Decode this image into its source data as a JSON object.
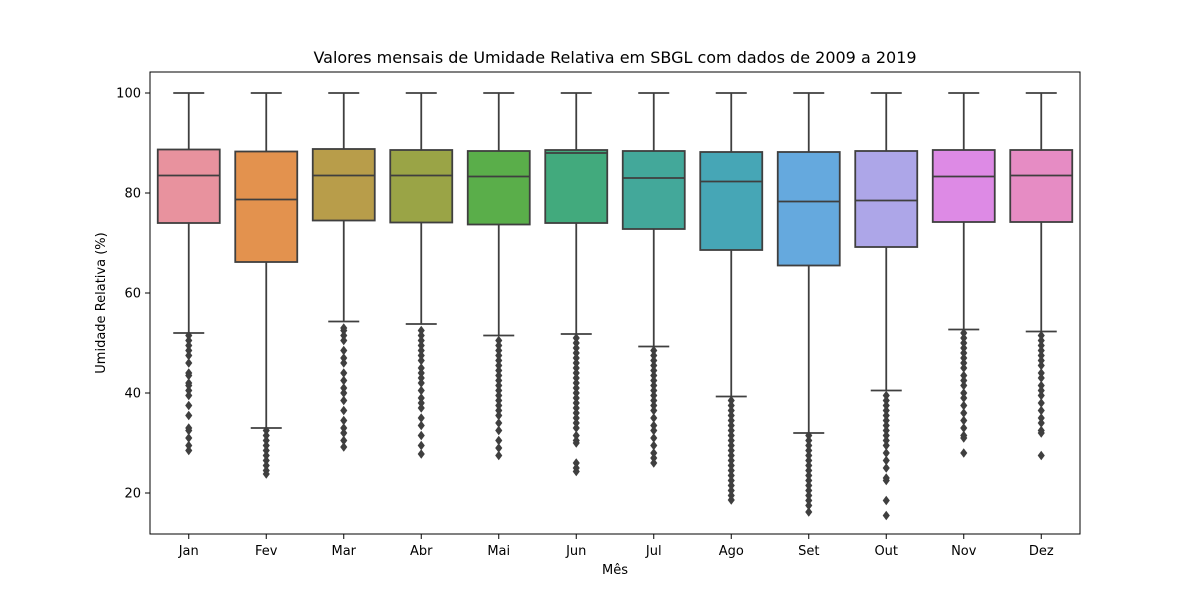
{
  "chart_data": {
    "type": "box",
    "title": "Valores mensais de Umidade Relativa em SBGL com dados de 2009 a 2019",
    "xlabel": "Mês",
    "ylabel": "Umidade Relativa (%)",
    "ylim": [
      11.8,
      104.2
    ],
    "yticks": [
      20,
      40,
      60,
      80,
      100
    ],
    "grid": false,
    "legend": "none",
    "categories": [
      "Jan",
      "Fev",
      "Mar",
      "Abr",
      "Mai",
      "Jun",
      "Jul",
      "Ago",
      "Set",
      "Out",
      "Nov",
      "Dez"
    ],
    "series": [
      {
        "color": "#e8929e",
        "whislo": 52,
        "q1": 74,
        "med": 83.5,
        "q3": 88.7,
        "whishi": 100,
        "fliers": [
          51.5,
          50.5,
          49.5,
          48.5,
          47.5,
          46,
          44,
          43.5,
          42,
          41.5,
          40.5,
          39.5,
          37.5,
          35.5,
          33,
          32.5,
          31,
          29.5,
          28.5
        ]
      },
      {
        "color": "#e3924e",
        "whislo": 33,
        "q1": 66.2,
        "med": 78.7,
        "q3": 88.3,
        "whishi": 100,
        "fliers": [
          32.5,
          31.5,
          30.5,
          29.5,
          28.5,
          27.5,
          26.5,
          25.5,
          24.5,
          23.8
        ]
      },
      {
        "color": "#b89d4a",
        "whislo": 54.3,
        "q1": 74.5,
        "med": 83.5,
        "q3": 88.8,
        "whishi": 100,
        "fliers": [
          53,
          52.5,
          51.5,
          50.5,
          48.5,
          47,
          46,
          44,
          42.5,
          41,
          40,
          38.5,
          36.5,
          34.5,
          33,
          32,
          30.5,
          29.2
        ]
      },
      {
        "color": "#9aa446",
        "whislo": 53.8,
        "q1": 74.1,
        "med": 83.5,
        "q3": 88.6,
        "whishi": 100,
        "fliers": [
          52.5,
          51.5,
          50.5,
          49.5,
          48.5,
          47.5,
          46.5,
          45,
          44,
          43,
          42,
          40.5,
          39,
          38,
          37,
          35,
          33.5,
          31.5,
          29.5,
          27.8
        ]
      },
      {
        "color": "#5aae4a",
        "whislo": 51.5,
        "q1": 73.7,
        "med": 83.3,
        "q3": 88.4,
        "whishi": 100,
        "fliers": [
          50.5,
          49.5,
          48.5,
          47.5,
          46.5,
          45.5,
          44.5,
          43.5,
          42.5,
          41.5,
          40.5,
          39.5,
          38.5,
          37.5,
          36.5,
          35.5,
          34,
          32.5,
          30.5,
          29,
          27.5
        ]
      },
      {
        "color": "#42aa7d",
        "whislo": 51.8,
        "q1": 74,
        "med": 88,
        "q3": 88.6,
        "whishi": 100,
        "fliers": [
          51,
          50,
          49,
          48,
          47,
          46,
          45,
          44,
          43,
          42,
          41,
          40,
          39,
          38,
          37,
          36,
          35,
          34,
          33,
          31.5,
          30.5,
          30,
          26,
          25,
          24.3
        ]
      },
      {
        "color": "#43a89a",
        "whislo": 49.3,
        "q1": 72.8,
        "med": 83,
        "q3": 88.4,
        "whishi": 100,
        "fliers": [
          48.5,
          47.5,
          46.5,
          45.5,
          44.5,
          43.5,
          42.5,
          41.5,
          40.5,
          39.5,
          38.5,
          37.5,
          36.5,
          35,
          33.5,
          32.5,
          31,
          29.5,
          28,
          27,
          26
        ]
      },
      {
        "color": "#46a6b6",
        "whislo": 39.3,
        "q1": 68.6,
        "med": 82.3,
        "q3": 88.2,
        "whishi": 100,
        "fliers": [
          38.5,
          37.5,
          36.5,
          35.5,
          34.5,
          33.5,
          32.5,
          31.5,
          30.5,
          29.5,
          28.5,
          27.5,
          26.5,
          25.5,
          24.5,
          23.5,
          22.5,
          21.5,
          20.5,
          19.5,
          18.6
        ]
      },
      {
        "color": "#65a9de",
        "whislo": 32,
        "q1": 65.5,
        "med": 78.3,
        "q3": 88.2,
        "whishi": 100,
        "fliers": [
          31.5,
          30.5,
          29.5,
          28.5,
          27.5,
          26.5,
          25.5,
          24.5,
          23.5,
          22.5,
          21.5,
          20.5,
          19.5,
          18.5,
          17.5,
          16.2
        ]
      },
      {
        "color": "#ada6e8",
        "whislo": 40.5,
        "q1": 69.2,
        "med": 78.5,
        "q3": 88.4,
        "whishi": 100,
        "fliers": [
          39.5,
          38.5,
          37.5,
          36.5,
          35.5,
          34.5,
          33.5,
          32.5,
          31.5,
          30.5,
          29.5,
          28,
          26.5,
          25,
          23,
          22.5,
          18.5,
          15.5
        ]
      },
      {
        "color": "#dd8ae5",
        "whislo": 52.7,
        "q1": 74.2,
        "med": 83.3,
        "q3": 88.6,
        "whishi": 100,
        "fliers": [
          52,
          51,
          50,
          49,
          48,
          47,
          46,
          45,
          43.5,
          42.5,
          41.5,
          40,
          39,
          37.5,
          36,
          34.5,
          33,
          31.5,
          31,
          28
        ]
      },
      {
        "color": "#e68cc4",
        "whislo": 52.3,
        "q1": 74.2,
        "med": 83.5,
        "q3": 88.6,
        "whishi": 100,
        "fliers": [
          51.5,
          50.5,
          49.5,
          48.5,
          47.5,
          46.5,
          45.5,
          44,
          43,
          41.5,
          40.5,
          39.5,
          38,
          36.5,
          35,
          34,
          32.5,
          32,
          27.5
        ]
      }
    ]
  }
}
